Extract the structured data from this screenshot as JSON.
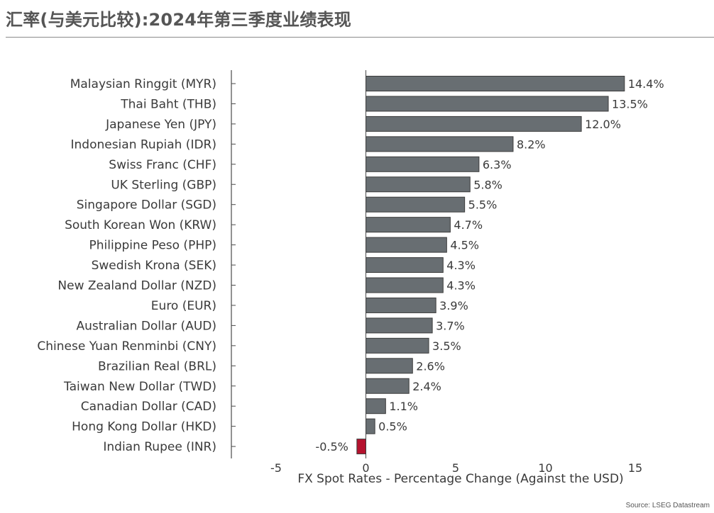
{
  "page": {
    "title": "汇率(与美元比较):2024年第三季度业绩表现",
    "source": "Source: LSEG Datastream"
  },
  "colors": {
    "bar_default": "#686e72",
    "bar_negative": "#b5122e",
    "bar_outline": "#3c3c3c",
    "axis": "#4a4a4a",
    "text": "#3a3a3a"
  },
  "chart_data": {
    "type": "bar",
    "orientation": "horizontal",
    "categories": [
      "Malaysian Ringgit (MYR)",
      "Thai Baht (THB)",
      "Japanese Yen (JPY)",
      "Indonesian Rupiah (IDR)",
      "Swiss Franc (CHF)",
      "UK Sterling (GBP)",
      "Singapore Dollar (SGD)",
      "South Korean Won (KRW)",
      "Philippine Peso (PHP)",
      "Swedish Krona (SEK)",
      "New Zealand Dollar (NZD)",
      "Euro (EUR)",
      "Australian Dollar (AUD)",
      "Chinese Yuan Renminbi (CNY)",
      "Brazilian Real (BRL)",
      "Taiwan New Dollar (TWD)",
      "Canadian Dollar (CAD)",
      "Hong Kong Dollar (HKD)",
      "Indian Rupee (INR)"
    ],
    "values": [
      14.4,
      13.5,
      12.0,
      8.2,
      6.3,
      5.8,
      5.5,
      4.7,
      4.5,
      4.3,
      4.3,
      3.9,
      3.7,
      3.5,
      2.6,
      2.4,
      1.1,
      0.5,
      -0.5
    ],
    "value_labels": [
      "14.4%",
      "13.5%",
      "12.0%",
      "8.2%",
      "6.3%",
      "5.8%",
      "5.5%",
      "4.7%",
      "4.5%",
      "4.3%",
      "4.3%",
      "3.9%",
      "3.7%",
      "3.5%",
      "2.6%",
      "2.4%",
      "1.1%",
      "0.5%",
      "-0.5%"
    ],
    "xlabel": "FX Spot Rates - Percentage Change (Against the USD)",
    "ylabel": "",
    "xlim": [
      -5,
      15
    ],
    "xticks": [
      -5,
      0,
      5,
      10,
      15
    ],
    "xtick_labels": [
      "-5",
      "0",
      "5",
      "10",
      "15"
    ],
    "grid": false,
    "legend": "none"
  }
}
